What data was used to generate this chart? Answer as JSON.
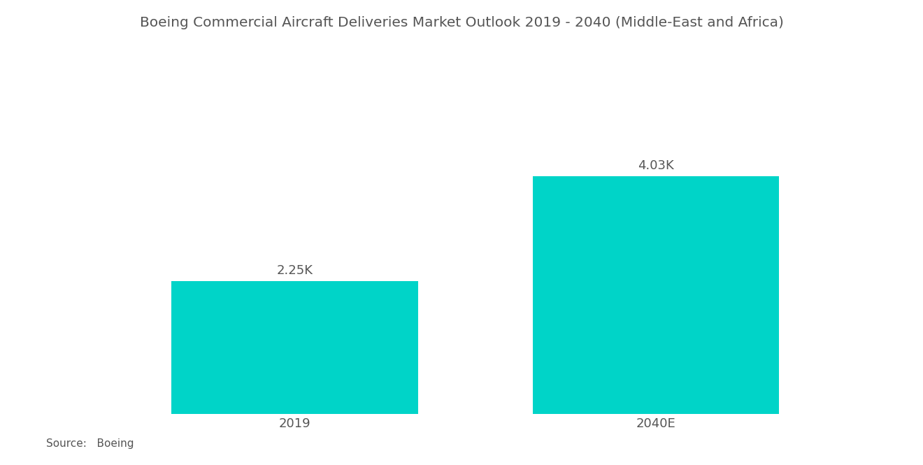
{
  "title": "Boeing Commercial Aircraft Deliveries Market Outlook 2019 - 2040 (Middle-East and Africa)",
  "categories": [
    "2019",
    "2040E"
  ],
  "values": [
    2250,
    4030
  ],
  "labels": [
    "2.25K",
    "4.03K"
  ],
  "bar_color": "#00D4C8",
  "background_color": "#ffffff",
  "title_fontsize": 14.5,
  "label_fontsize": 13,
  "tick_fontsize": 13,
  "source_text": "Source:   Boeing",
  "source_bold": "Source:",
  "source_fontsize": 11,
  "ylim": [
    0,
    6000
  ],
  "x_positions": [
    0.28,
    0.72
  ],
  "bar_width": 0.3
}
